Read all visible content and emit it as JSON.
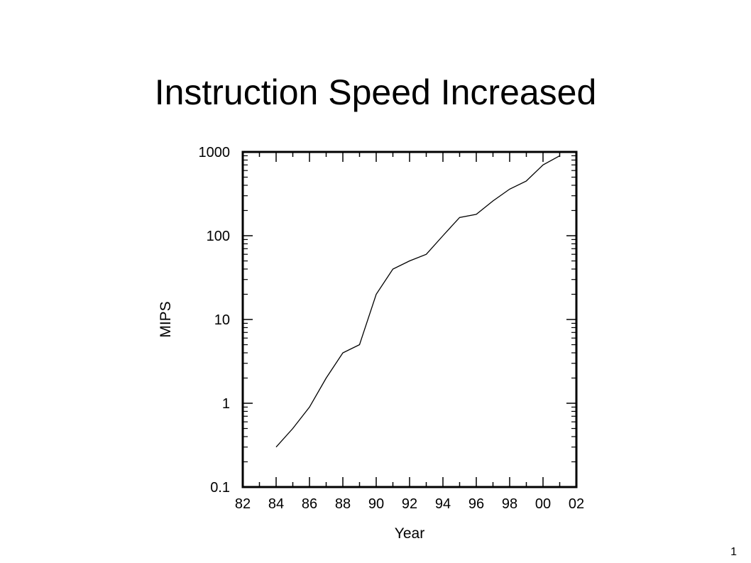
{
  "slide": {
    "title": "Instruction Speed Increased",
    "page_number": "1"
  },
  "chart_data": {
    "type": "line",
    "xlabel": "Year",
    "ylabel": "MIPS",
    "yscale": "log",
    "xlim": [
      1982,
      2002
    ],
    "ylim": [
      0.1,
      1000
    ],
    "x_tick_labels": [
      "82",
      "84",
      "86",
      "88",
      "90",
      "92",
      "94",
      "96",
      "98",
      "00",
      "02"
    ],
    "y_tick_labels": [
      "1000",
      "100",
      "10",
      "1",
      "0.1"
    ],
    "grid": false,
    "line_color": "#000000",
    "series": [
      {
        "x": [
          1984,
          1985,
          1986,
          1987,
          1988,
          1989,
          1990,
          1991,
          1992,
          1993,
          1994,
          1995,
          1996,
          1997,
          1998,
          1999,
          2000,
          2001
        ],
        "y": [
          0.3,
          0.5,
          0.9,
          2,
          4,
          5,
          20,
          40,
          50,
          60,
          100,
          165,
          180,
          260,
          360,
          450,
          700,
          900
        ]
      }
    ]
  }
}
